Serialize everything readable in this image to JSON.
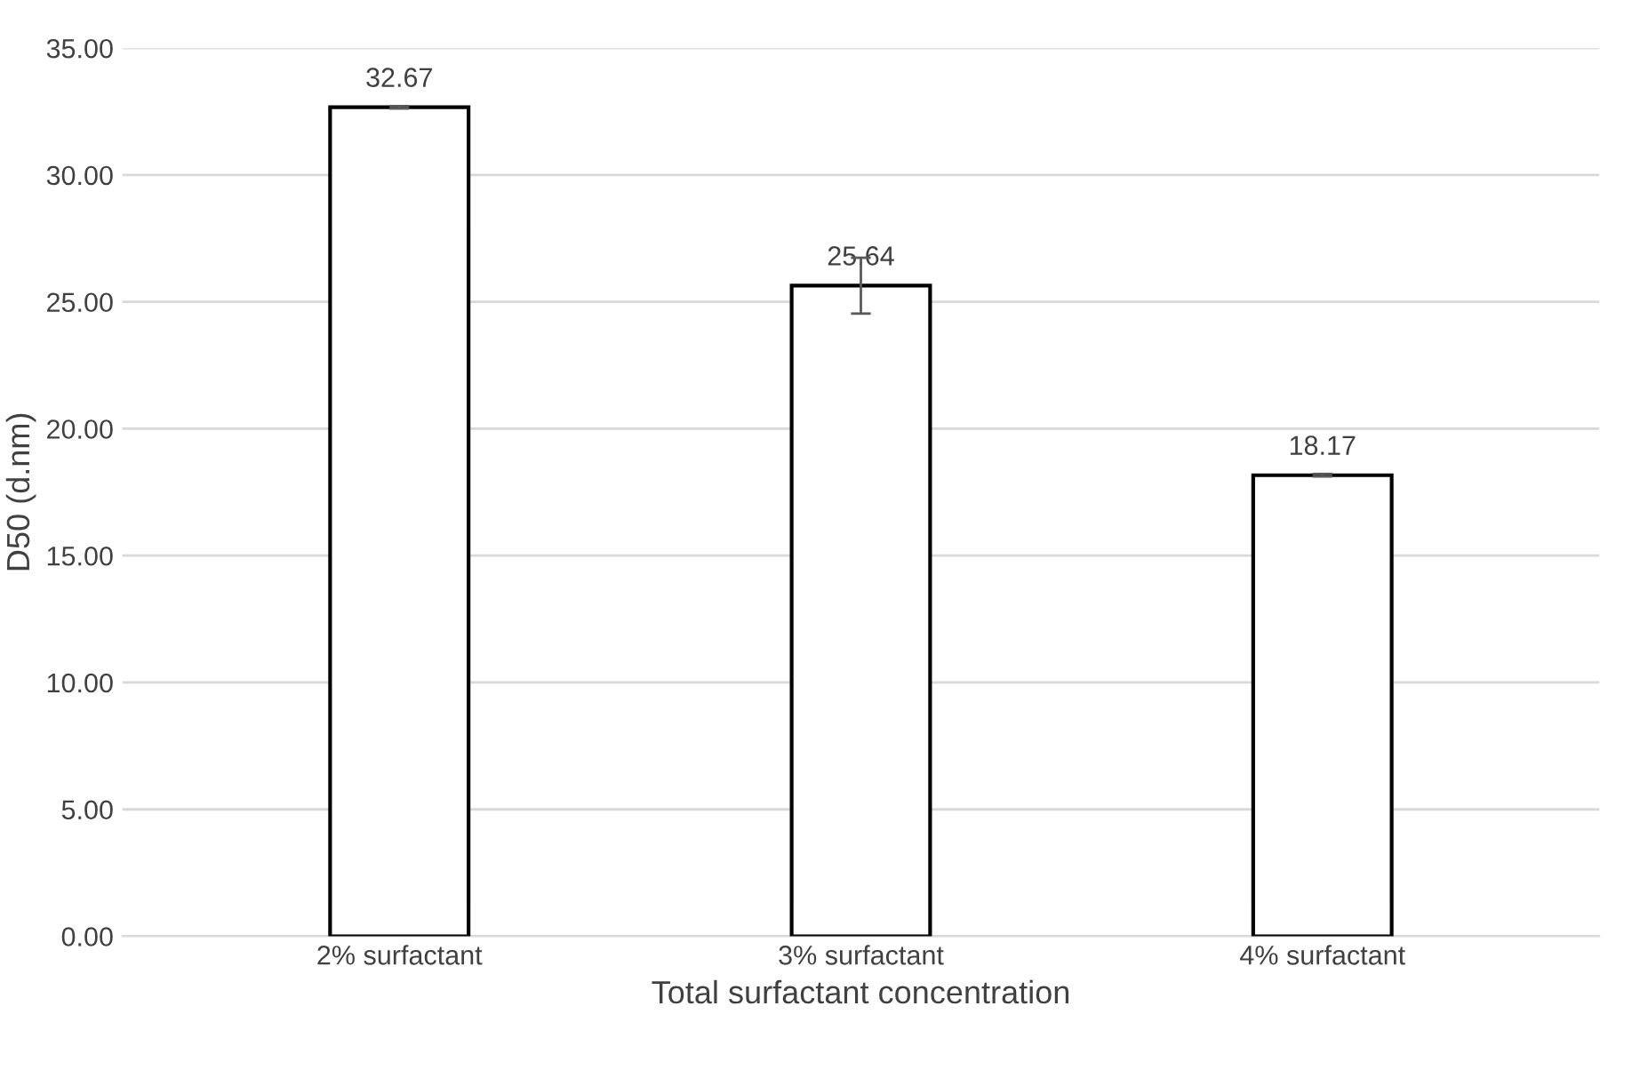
{
  "chart_data": {
    "type": "bar",
    "xlabel": "Total surfactant concentration",
    "ylabel": "D50 (d.nm)",
    "categories": [
      "2% surfactant",
      "3% surfactant",
      "4% surfactant"
    ],
    "values": [
      32.67,
      25.64,
      18.17
    ],
    "errors": [
      0.05,
      1.1,
      0.05
    ],
    "color": "#ffffff",
    "data_labels": true,
    "ylim": [
      0,
      35
    ],
    "yticks": [
      {
        "value": 0,
        "label": "0.00"
      },
      {
        "value": 5,
        "label": "5.00"
      },
      {
        "value": 10,
        "label": "10.00"
      },
      {
        "value": 15,
        "label": "15.00"
      },
      {
        "value": 20,
        "label": "20.00"
      },
      {
        "value": 25,
        "label": "25.00"
      },
      {
        "value": 30,
        "label": "30.00"
      },
      {
        "value": 35,
        "label": "35.00"
      }
    ],
    "grid": "y",
    "legend": false
  }
}
